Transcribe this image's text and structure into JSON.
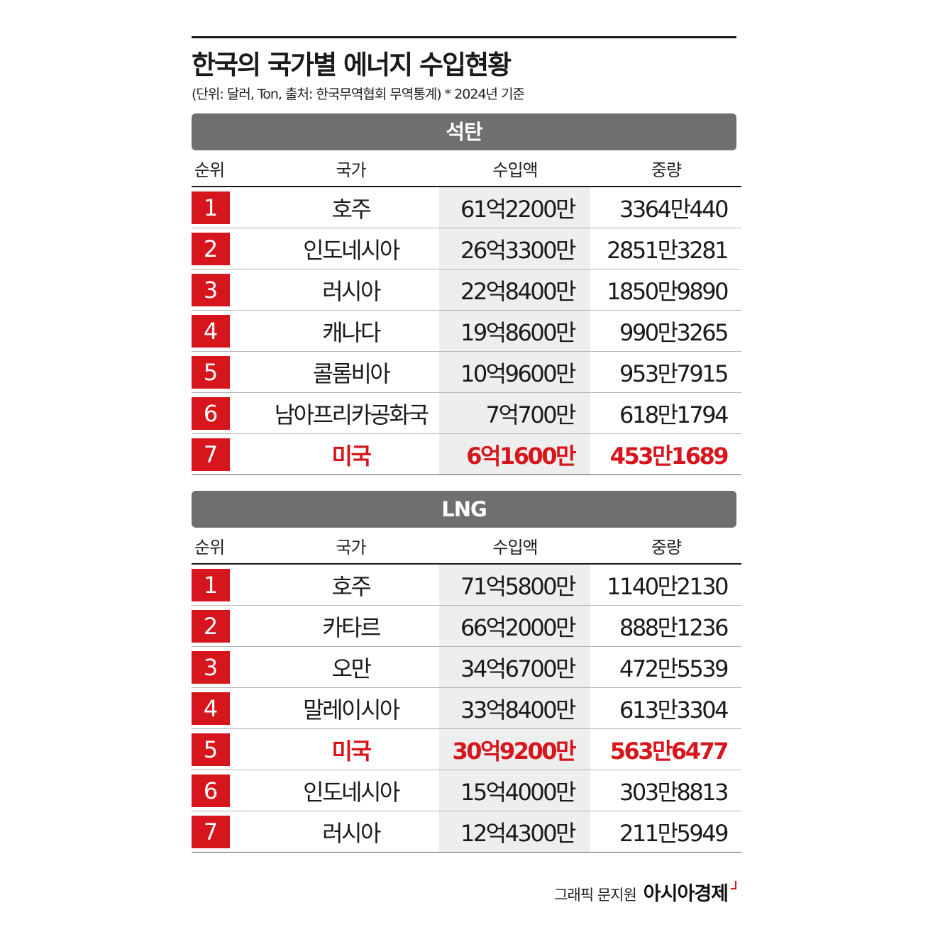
{
  "title": "한국의 국가별 에너지 수입현황",
  "subtitle": "(단위: 달러, Ton, 출처: 한국무역협회 무역통계)  * 2024년 기준",
  "columns": [
    "순위",
    "국가",
    "수입액",
    "중량"
  ],
  "sections": [
    {
      "name": "석탄",
      "rows": [
        {
          "rank": "1",
          "country": "호주",
          "amount": "61억2200만",
          "weight": "3364만440"
        },
        {
          "rank": "2",
          "country": "인도네시아",
          "amount": "26억3300만",
          "weight": "2851만3281"
        },
        {
          "rank": "3",
          "country": "러시아",
          "amount": "22억8400만",
          "weight": "1850만9890"
        },
        {
          "rank": "4",
          "country": "캐나다",
          "amount": "19억8600만",
          "weight": "990만3265"
        },
        {
          "rank": "5",
          "country": "콜롬비아",
          "amount": "10억9600만",
          "weight": "953만7915"
        },
        {
          "rank": "6",
          "country": "남아프리카공화국",
          "amount": "7억700만",
          "weight": "618만1794"
        },
        {
          "rank": "7",
          "country": "미국",
          "amount": "6억1600만",
          "weight": "453만1689"
        }
      ]
    },
    {
      "name": "LNG",
      "rows": [
        {
          "rank": "1",
          "country": "호주",
          "amount": "71억5800만",
          "weight": "1140만2130"
        },
        {
          "rank": "2",
          "country": "카타르",
          "amount": "66억2000만",
          "weight": "888만1236"
        },
        {
          "rank": "3",
          "country": "오만",
          "amount": "34억6700만",
          "weight": "472만5539"
        },
        {
          "rank": "4",
          "country": "말레이시아",
          "amount": "33억8400만",
          "weight": "613만3304"
        },
        {
          "rank": "5",
          "country": "미국",
          "amount": "30억9200만",
          "weight": "563만6477"
        },
        {
          "rank": "6",
          "country": "인도네시아",
          "amount": "15억4000만",
          "weight": "303만8813"
        },
        {
          "rank": "7",
          "country": "러시아",
          "amount": "12억4300만",
          "weight": "211만5949"
        }
      ]
    }
  ],
  "highlight_country": "미국",
  "colors": {
    "accent": "#d7151c",
    "section_header": "#6f6f6f",
    "amount_bg": "#eeeeee"
  },
  "credit": {
    "author": "그래픽 문지원",
    "brand": "아시아경제"
  }
}
